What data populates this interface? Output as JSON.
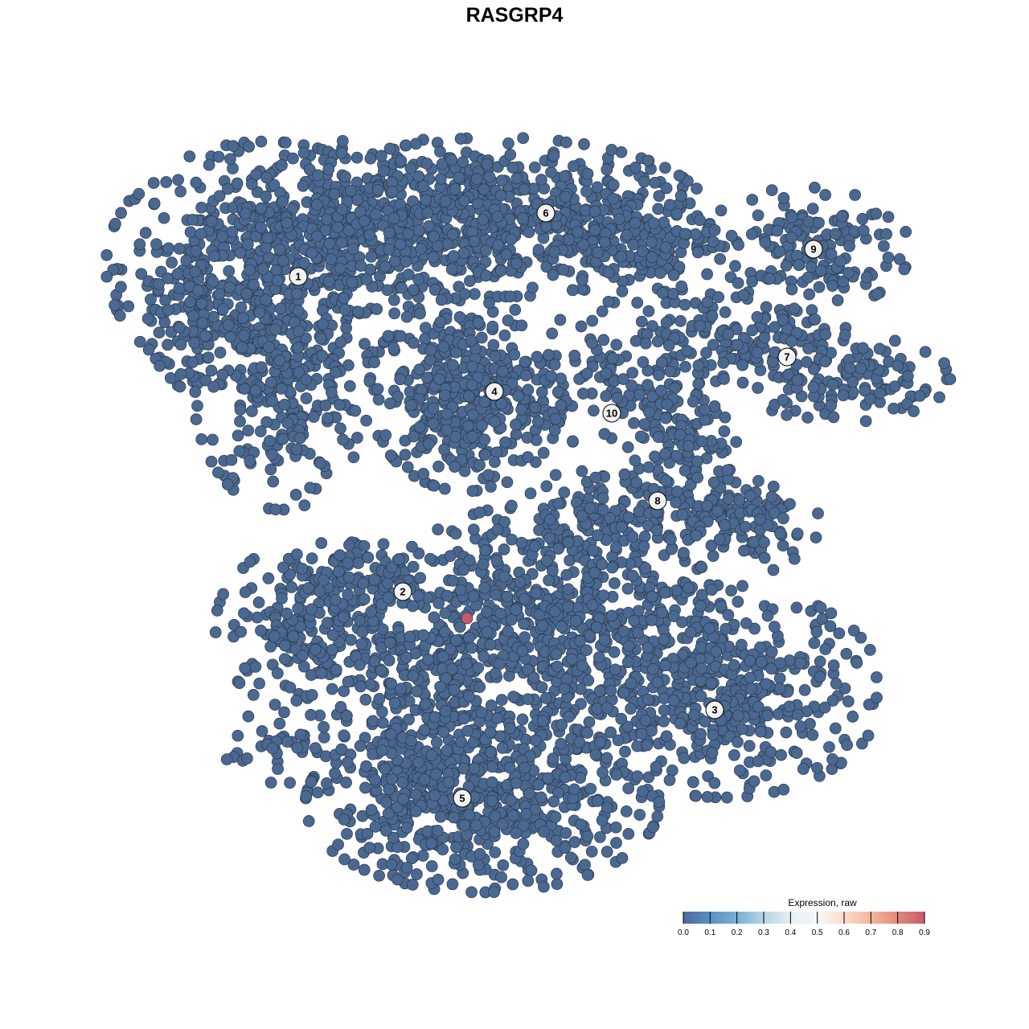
{
  "chart_data": {
    "type": "scatter",
    "title": "RASGRP4",
    "xlabel": "",
    "ylabel": "",
    "axes_visible": false,
    "grid": false,
    "point_color_default": "#4a6890",
    "point_stroke": "#2b3a4e",
    "xlim": [
      -46,
      50
    ],
    "ylim": [
      -46,
      46
    ],
    "clusters": [
      {
        "label": "1",
        "x": -26.9,
        "y": 29.6
      },
      {
        "label": "2",
        "x": -13.9,
        "y": -9.6
      },
      {
        "label": "3",
        "x": 24.9,
        "y": -24.3
      },
      {
        "label": "4",
        "x": -2.5,
        "y": 15.3
      },
      {
        "label": "5",
        "x": -6.5,
        "y": -35.3
      },
      {
        "label": "6",
        "x": 3.9,
        "y": 37.5
      },
      {
        "label": "7",
        "x": 33.9,
        "y": 19.6
      },
      {
        "label": "8",
        "x": 17.8,
        "y": 1.7
      },
      {
        "label": "9",
        "x": 37.2,
        "y": 33.0
      },
      {
        "label": "10",
        "x": 12.1,
        "y": 12.6
      }
    ],
    "point_groups": [
      {
        "cluster": "1",
        "x": -31,
        "y": 31,
        "sx": 9,
        "sy": 7,
        "n": 500,
        "expression": 0.0
      },
      {
        "cluster": "1",
        "x": -29,
        "y": 16,
        "sx": 5,
        "sy": 7,
        "n": 250,
        "expression": 0.0
      },
      {
        "cluster": "1",
        "x": -16,
        "y": 36,
        "sx": 8,
        "sy": 5,
        "n": 300,
        "expression": 0.0
      },
      {
        "cluster": "1",
        "x": -39,
        "y": 24,
        "sx": 3,
        "sy": 4,
        "n": 80,
        "expression": 0.0
      },
      {
        "cluster": "6",
        "x": -2,
        "y": 37,
        "sx": 12,
        "sy": 4.5,
        "n": 500,
        "expression": 0.0
      },
      {
        "cluster": "6",
        "x": 14,
        "y": 34,
        "sx": 5,
        "sy": 3.5,
        "n": 150,
        "expression": 0.0
      },
      {
        "cluster": "4",
        "x": -6,
        "y": 15,
        "sx": 5.5,
        "sy": 5.5,
        "n": 400,
        "expression": 0.0
      },
      {
        "cluster": "9",
        "x": 36,
        "y": 33,
        "sx": 6,
        "sy": 3.5,
        "n": 150,
        "expression": 0.0
      },
      {
        "cluster": "7",
        "x": 28,
        "y": 23,
        "sx": 6,
        "sy": 3,
        "n": 150,
        "expression": 0.0
      },
      {
        "cluster": "7",
        "x": 41,
        "y": 17,
        "sx": 6,
        "sy": 2.5,
        "n": 120,
        "expression": 0.0
      },
      {
        "cluster": "10",
        "x": 12,
        "y": 17,
        "sx": 5,
        "sy": 4,
        "n": 100,
        "expression": 0.0
      },
      {
        "cluster": "8",
        "x": 21,
        "y": 8,
        "sx": 3,
        "sy": 5,
        "n": 120,
        "expression": 0.0
      },
      {
        "cluster": "8",
        "x": 28,
        "y": -1,
        "sx": 4.5,
        "sy": 3,
        "n": 120,
        "expression": 0.0
      },
      {
        "cluster": "8",
        "x": 11,
        "y": 0,
        "sx": 6,
        "sy": 2.5,
        "n": 120,
        "expression": 0.0
      },
      {
        "cluster": "2",
        "x": -24,
        "y": -14,
        "sx": 6,
        "sy": 5,
        "n": 250,
        "expression": 0.0
      },
      {
        "cluster": "2",
        "x": -18,
        "y": -8,
        "sx": 4,
        "sy": 2,
        "n": 60,
        "expression": 0.0
      },
      {
        "cluster": "2",
        "x": -29,
        "y": -29,
        "sx": 4,
        "sy": 2,
        "n": 40,
        "expression": 0.0
      },
      {
        "cluster": "",
        "x": 4,
        "y": -14,
        "sx": 10,
        "sy": 7,
        "n": 700,
        "expression": 0.0
      },
      {
        "cluster": "3",
        "x": 26,
        "y": -22,
        "sx": 9,
        "sy": 6,
        "n": 450,
        "expression": 0.0
      },
      {
        "cluster": "5",
        "x": -4,
        "y": -36,
        "sx": 10,
        "sy": 5,
        "n": 550,
        "expression": 0.0
      },
      {
        "cluster": "5",
        "x": -11,
        "y": -26,
        "sx": 5,
        "sy": 5,
        "n": 200,
        "expression": 0.0
      }
    ],
    "highlighted_points": [
      {
        "x": -5.9,
        "y": -12.9,
        "expression": 0.9
      }
    ],
    "legend": {
      "title": "Expression, raw",
      "placement": "bottom-right",
      "range": [
        0.0,
        0.9
      ],
      "ticks": [
        "0.0",
        "0.1",
        "0.2",
        "0.3",
        "0.4",
        "0.5",
        "0.6",
        "0.7",
        "0.8",
        "0.9"
      ],
      "colors": [
        "#4b6a96",
        "#5b8fc4",
        "#7ab0d4",
        "#b5d6e6",
        "#e6eff5",
        "#f7f7f7",
        "#fbdccc",
        "#f4b59d",
        "#e08a7c",
        "#c8596a"
      ]
    }
  }
}
